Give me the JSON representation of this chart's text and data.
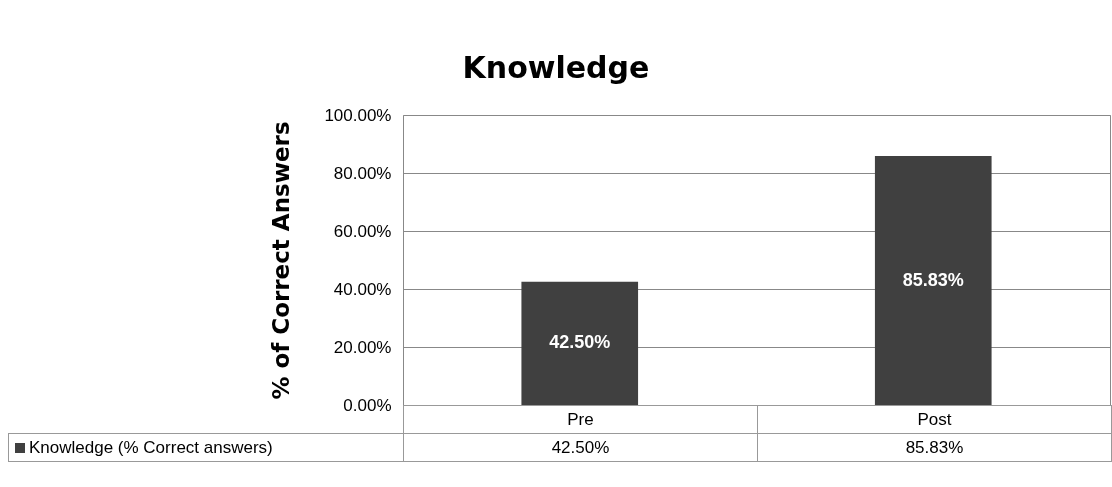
{
  "chart_data": {
    "type": "bar",
    "title": "Knowledge",
    "ylabel": "% of Correct Answers",
    "categories": [
      "Pre",
      "Post"
    ],
    "series": [
      {
        "name": "Knowledge (% Correct answers)",
        "color": "#404040",
        "values": [
          42.5,
          85.83
        ],
        "value_labels": [
          "42.50%",
          "85.83%"
        ]
      }
    ],
    "ylim": [
      0,
      100
    ],
    "yticks": [
      {
        "value": 0,
        "label": "0.00%"
      },
      {
        "value": 20,
        "label": "20.00%"
      },
      {
        "value": 40,
        "label": "40.00%"
      },
      {
        "value": 60,
        "label": "60.00%"
      },
      {
        "value": 80,
        "label": "80.00%"
      },
      {
        "value": 100,
        "label": "100.00%"
      }
    ],
    "grid": "y",
    "legend": "bottom",
    "data_labels": true
  }
}
